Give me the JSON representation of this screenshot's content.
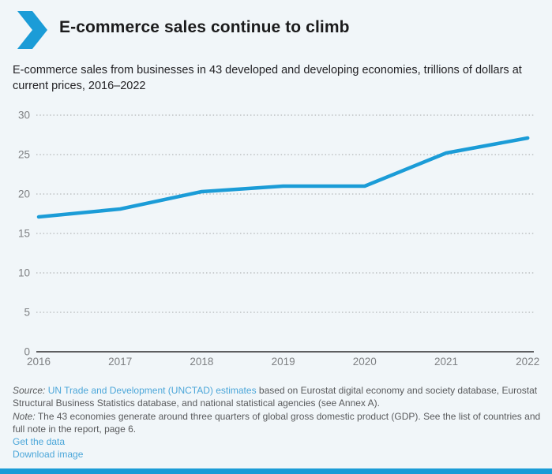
{
  "page": {
    "background_color": "#f1f6f9",
    "accent_blue": "#1b9cd7",
    "link_blue": "#4ba6d9"
  },
  "header": {
    "title": "E-commerce sales continue to climb"
  },
  "subtitle": "E-commerce sales from businesses in 43 developed and developing economies, trillions of dollars at current prices, 2016–2022",
  "chart_data": {
    "type": "line",
    "categories": [
      "2016",
      "2017",
      "2018",
      "2019",
      "2020",
      "2021",
      "2022"
    ],
    "series": [
      {
        "name": "E-commerce sales (trillions of dollars)",
        "values": [
          17.1,
          18.1,
          20.3,
          21.0,
          21.0,
          25.2,
          27.1
        ],
        "color": "#1b9cd7"
      }
    ],
    "title": "E-commerce sales continue to climb",
    "xlabel": "",
    "ylabel": "",
    "ylim": [
      0,
      30
    ],
    "yticks": [
      0,
      5,
      10,
      15,
      20,
      25,
      30
    ],
    "grid": "horizontal-dotted",
    "legend": "none"
  },
  "footer": {
    "source_label": "Source:",
    "source_link": "UN Trade and Development (UNCTAD) estimates",
    "source_rest": "based on Eurostat digital economy and society database, Eurostat Structural Business Statistics database, and national statistical agencies (see Annex A).",
    "note_label": "Note:",
    "note_text": "The 43 economies generate around three quarters of global gross domestic product (GDP). See the list of countries and full note in the report, page 6.",
    "links": [
      {
        "label": "Get the data"
      },
      {
        "label": "Download image"
      }
    ]
  }
}
